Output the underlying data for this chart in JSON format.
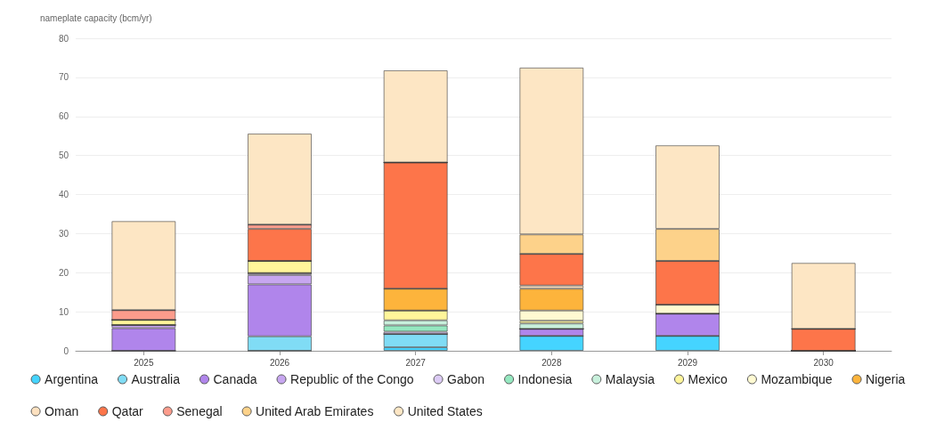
{
  "chart_data": {
    "type": "bar",
    "stacked": true,
    "ylabel": "nameplate capacity (bcm/yr)",
    "categories": [
      "2025",
      "2026",
      "2027",
      "2028",
      "2029",
      "2030"
    ],
    "ylim": [
      0,
      80
    ],
    "yticks": [
      0,
      10,
      20,
      30,
      40,
      50,
      60,
      70,
      80
    ],
    "grid": "y",
    "legend": "bottom",
    "series": [
      {
        "name": "Argentina",
        "color": "#45d4ff",
        "values": [
          0,
          0,
          0.9,
          3.8,
          3.8,
          0
        ]
      },
      {
        "name": "Australia",
        "color": "#80dcf5",
        "values": [
          0,
          3.7,
          3.4,
          0,
          0,
          0
        ]
      },
      {
        "name": "Canada",
        "color": "#b085eb",
        "values": [
          5.8,
          13.3,
          0,
          1.8,
          5.7,
          0
        ]
      },
      {
        "name": "Republic of the Congo",
        "color": "#c7a6f0",
        "values": [
          0.8,
          2.4,
          0,
          0,
          0,
          0
        ]
      },
      {
        "name": "Gabon",
        "color": "#dccbf5",
        "values": [
          0,
          0.5,
          0.6,
          0,
          0,
          0
        ]
      },
      {
        "name": "Indonesia",
        "color": "#95e8c0",
        "values": [
          0,
          0,
          1.6,
          0,
          0,
          0
        ]
      },
      {
        "name": "Malaysia",
        "color": "#c8f0dc",
        "values": [
          0,
          0,
          1.3,
          1.4,
          0,
          0
        ]
      },
      {
        "name": "Mexico",
        "color": "#fff59a",
        "values": [
          1.3,
          3.1,
          2.5,
          0.7,
          0,
          0
        ]
      },
      {
        "name": "Mozambique",
        "color": "#fffad2",
        "values": [
          0,
          0,
          0,
          2.6,
          2.3,
          0
        ]
      },
      {
        "name": "Nigeria",
        "color": "#fdb43c",
        "values": [
          0,
          0,
          5.6,
          5.6,
          0,
          0
        ]
      },
      {
        "name": "Oman",
        "color": "#fde1c0",
        "values": [
          0,
          0,
          0,
          0.8,
          0,
          0
        ]
      },
      {
        "name": "Qatar",
        "color": "#fd754a",
        "values": [
          0,
          8.2,
          32.3,
          8.1,
          11.2,
          5.6
        ]
      },
      {
        "name": "Senegal",
        "color": "#fc9c8c",
        "values": [
          2.5,
          1.1,
          0,
          0,
          0,
          0
        ]
      },
      {
        "name": "United Arab Emirates",
        "color": "#fdd28a",
        "values": [
          0,
          0,
          0,
          5.0,
          8.2,
          0
        ]
      },
      {
        "name": "United States",
        "color": "#fde6c4",
        "values": [
          22.8,
          23.3,
          23.6,
          42.7,
          21.4,
          16.9
        ]
      }
    ]
  }
}
